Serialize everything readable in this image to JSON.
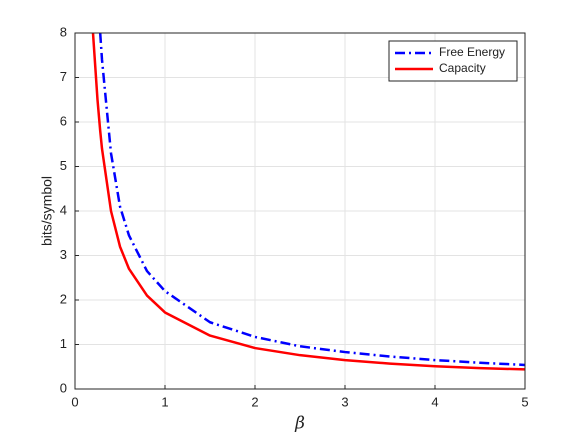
{
  "chart_data": {
    "type": "line",
    "xlabel": "β",
    "ylabel": "bits/symbol",
    "x": [
      0.2,
      0.25,
      0.28,
      0.3,
      0.4,
      0.5,
      0.6,
      0.8,
      1,
      1.5,
      2,
      2.5,
      3,
      3.5,
      4,
      4.5,
      5
    ],
    "series": [
      {
        "name": "Free Energy",
        "color": "#0000ff",
        "linestyle": "dashdot",
        "values": [
          null,
          null,
          8,
          7.4,
          5.3,
          4.1,
          3.45,
          2.65,
          2.2,
          1.5,
          1.17,
          0.96,
          0.83,
          0.73,
          0.65,
          0.59,
          0.54
        ]
      },
      {
        "name": "Capacity",
        "color": "#ff0000",
        "linestyle": "solid",
        "values": [
          8,
          6.5,
          5.8,
          5.4,
          4.0,
          3.2,
          2.7,
          2.1,
          1.72,
          1.2,
          0.92,
          0.76,
          0.65,
          0.57,
          0.51,
          0.47,
          0.44
        ]
      }
    ],
    "xlim": [
      0,
      5
    ],
    "xticks": [
      0,
      1,
      2,
      3,
      4,
      5
    ],
    "ylim": [
      0,
      8
    ],
    "yticks": [
      0,
      1,
      2,
      3,
      4,
      5,
      6,
      7,
      8
    ],
    "grid": true,
    "legend": "top-right"
  }
}
